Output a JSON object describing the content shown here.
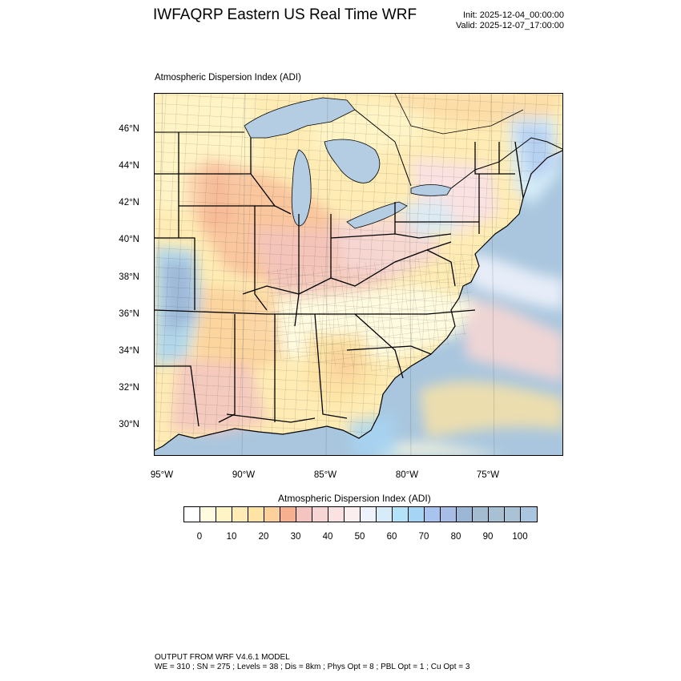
{
  "header": {
    "title": "IWFAQRP Eastern US Real Time WRF",
    "init": "Init: 2025-12-04_00:00:00",
    "valid": "Valid: 2025-12-07_17:00:00"
  },
  "map": {
    "subtitle": "Atmospheric Dispersion Index   (ADI)",
    "lat_labels": [
      "46°N",
      "44°N",
      "42°N",
      "40°N",
      "38°N",
      "36°N",
      "34°N",
      "32°N",
      "30°N"
    ],
    "lon_labels": [
      "95°W",
      "90°W",
      "85°W",
      "80°W",
      "75°W"
    ],
    "ocean_color": "#a9c6de",
    "lake_color": "#b5cde2"
  },
  "colorbar": {
    "title": "Atmospheric Dispersion Index  (ADI)",
    "colors": [
      "#ffffff",
      "#fffbe0",
      "#fff4c6",
      "#ffecb4",
      "#fde3a4",
      "#fbd09a",
      "#f6b090",
      "#f3c4c0",
      "#f6d6d4",
      "#f9e2e1",
      "#fbeeee",
      "#eef2fb",
      "#d6ecf8",
      "#b4e2f8",
      "#a6d4f4",
      "#a8c4ee",
      "#a8bde6",
      "#9cb6d6",
      "#a4bcd0",
      "#a7c0d4",
      "#a9c2d5",
      "#a9c6de"
    ],
    "labels": [
      "0",
      "10",
      "20",
      "30",
      "40",
      "50",
      "60",
      "70",
      "80",
      "90",
      "100"
    ]
  },
  "footer": {
    "line1": "OUTPUT FROM WRF V4.6.1 MODEL",
    "line2": "WE = 310 ; SN = 275 ; Levels = 38 ; Dis = 8km ; Phys Opt = 8 ; PBL Opt = 1 ; Cu Opt = 3"
  }
}
